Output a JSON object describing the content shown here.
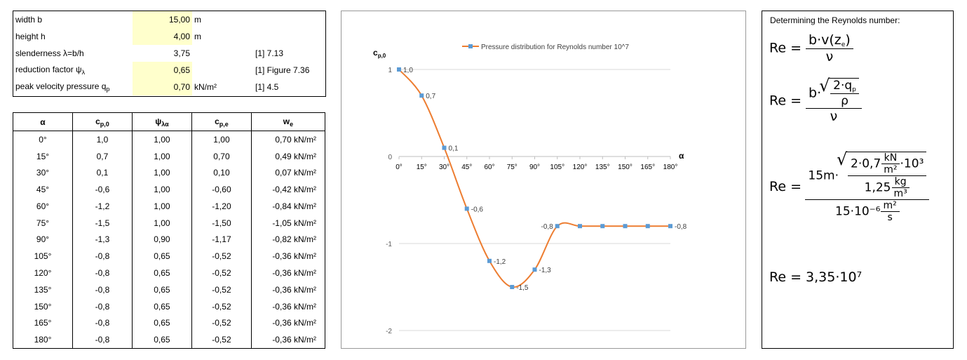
{
  "params": [
    {
      "label": "width b",
      "value": "15,00",
      "unit": "m",
      "ref": ""
    },
    {
      "label": "height h",
      "value": "4,00",
      "unit": "m",
      "ref": ""
    },
    {
      "label": "slenderness λ=b/h",
      "value": "3,75",
      "unit": "",
      "ref": "[1] 7.13"
    },
    {
      "label": "reduction factor ψ",
      "label_sub": "λ",
      "value": "0,65",
      "unit": "",
      "ref": "[1] Figure 7.36"
    },
    {
      "label": "peak velocity pressure q",
      "label_sub": "p",
      "value": "0,70",
      "unit": "kN/m²",
      "ref": "[1] 4.5"
    }
  ],
  "results": {
    "headers": [
      {
        "t": "α",
        "s": ""
      },
      {
        "t": "c",
        "s": "p,0"
      },
      {
        "t": "ψ",
        "s": "λα"
      },
      {
        "t": "c",
        "s": "p,e"
      },
      {
        "t": "w",
        "s": "e"
      }
    ],
    "rows": [
      [
        "0°",
        "1,0",
        "1,00",
        "1,00",
        "0,70  kN/m²"
      ],
      [
        "15°",
        "0,7",
        "1,00",
        "0,70",
        "0,49  kN/m²"
      ],
      [
        "30°",
        "0,1",
        "1,00",
        "0,10",
        "0,07  kN/m²"
      ],
      [
        "45°",
        "-0,6",
        "1,00",
        "-0,60",
        "-0,42  kN/m²"
      ],
      [
        "60°",
        "-1,2",
        "1,00",
        "-1,20",
        "-0,84  kN/m²"
      ],
      [
        "75°",
        "-1,5",
        "1,00",
        "-1,50",
        "-1,05  kN/m²"
      ],
      [
        "90°",
        "-1,3",
        "0,90",
        "-1,17",
        "-0,82  kN/m²"
      ],
      [
        "105°",
        "-0,8",
        "0,65",
        "-0,52",
        "-0,36  kN/m²"
      ],
      [
        "120°",
        "-0,8",
        "0,65",
        "-0,52",
        "-0,36  kN/m²"
      ],
      [
        "135°",
        "-0,8",
        "0,65",
        "-0,52",
        "-0,36  kN/m²"
      ],
      [
        "150°",
        "-0,8",
        "0,65",
        "-0,52",
        "-0,36  kN/m²"
      ],
      [
        "165°",
        "-0,8",
        "0,65",
        "-0,52",
        "-0,36  kN/m²"
      ],
      [
        "180°",
        "-0,8",
        "0,65",
        "-0,52",
        "-0,36  kN/m²"
      ]
    ]
  },
  "chart_data": {
    "type": "line",
    "legend": "Pressure distribution for Reynolds number 10^7",
    "legend_position": "top",
    "ylabel": "c",
    "ylabel_sub": "p,0",
    "xlabel": "α",
    "categories": [
      "0°",
      "15°",
      "30°",
      "45°",
      "60°",
      "75°",
      "90°",
      "105°",
      "120°",
      "135°",
      "150°",
      "165°",
      "180°"
    ],
    "series": [
      {
        "name": "Pressure distribution for Reynolds number 10^7",
        "values": [
          1.0,
          0.7,
          0.1,
          -0.6,
          -1.2,
          -1.5,
          -1.3,
          -0.8,
          -0.8,
          -0.8,
          -0.8,
          -0.8,
          -0.8
        ],
        "data_labels": [
          "1,0",
          "0,7",
          "0,1",
          "-0,6",
          "-1,2",
          "-1,5",
          "-1,3",
          "-0,8",
          "",
          "",
          "",
          "",
          "-0,8"
        ]
      }
    ],
    "ylim": [
      -2,
      1
    ],
    "yticks": [
      "1",
      "0",
      "-1",
      "-2"
    ],
    "grid": "horizontal",
    "line_color": "#ed7d31",
    "marker_color": "#5b9bd5"
  },
  "reynolds": {
    "title": "Determining the Reynolds number:",
    "re": "Re =",
    "f1_num": "b·v(z",
    "f1_num_sub": "e",
    "f1_num_end": ")",
    "nu": "ν",
    "f2_b": "b·",
    "f2_q": "2·q",
    "f2_q_sub": "p",
    "rho": "ρ",
    "f3_15m": "15m·",
    "f3_a": "2·0,7",
    "kN": "kN",
    "m2": "m²",
    "f3_b": "·10³",
    "f3_c": "1,25",
    "kg": "kg",
    "m3": "m³",
    "f3_d": "15·10⁻⁶",
    "s": "s",
    "result": "Re = 3,35·10⁷"
  }
}
